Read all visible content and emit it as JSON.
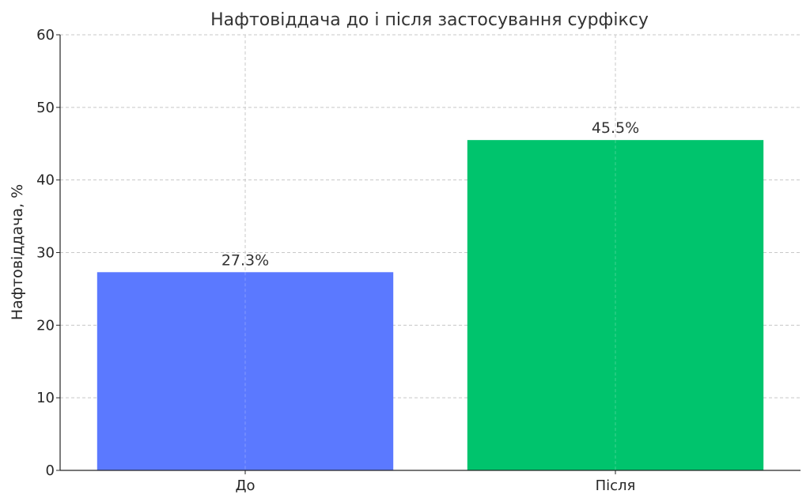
{
  "chart_data": {
    "type": "bar",
    "title": "Нафтовіддача до і після застосування сурфіксу",
    "xlabel": "",
    "ylabel": "Нафтовіддача, %",
    "categories": [
      "До",
      "Після"
    ],
    "values": [
      27.3,
      45.5
    ],
    "value_labels": [
      "27.3%",
      "45.5%"
    ],
    "colors": [
      "#5b79ff",
      "#00c46d"
    ],
    "ylim": [
      0,
      60
    ],
    "yticks": [
      0,
      10,
      20,
      30,
      40,
      50,
      60
    ],
    "grid": true
  }
}
